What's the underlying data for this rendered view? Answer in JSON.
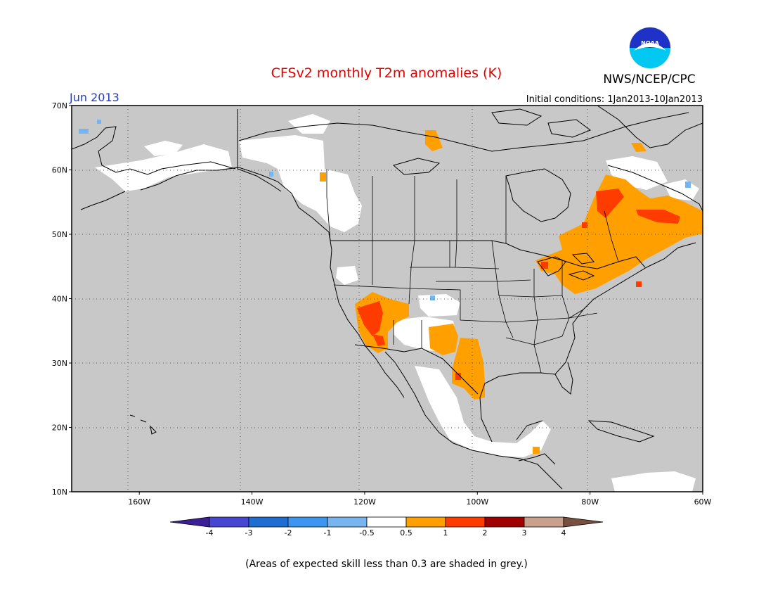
{
  "title": "CFSv2 monthly T2m anomalies (K)",
  "agency": "NWS/NCEP/CPC",
  "logo_text": "NOAA",
  "period": "Jun 2013",
  "initial_conditions": "Initial conditions: 1Jan2013-10Jan2013",
  "footer": "(Areas of expected skill less than 0.3 are shaded in grey.)",
  "map": {
    "lon_range": [
      -172,
      -60
    ],
    "lat_range": [
      10,
      70
    ],
    "lat_ticks": [
      {
        "value": 70,
        "label": "70N"
      },
      {
        "value": 60,
        "label": "60N"
      },
      {
        "value": 50,
        "label": "50N"
      },
      {
        "value": 40,
        "label": "40N"
      },
      {
        "value": 30,
        "label": "30N"
      },
      {
        "value": 20,
        "label": "20N"
      },
      {
        "value": 10,
        "label": "10N"
      }
    ],
    "lon_ticks": [
      {
        "value": -160,
        "label": "160W"
      },
      {
        "value": -140,
        "label": "140W"
      },
      {
        "value": -120,
        "label": "120W"
      },
      {
        "value": -100,
        "label": "100W"
      },
      {
        "value": -80,
        "label": "80W"
      },
      {
        "value": -60,
        "label": "60W"
      }
    ],
    "colors": {
      "no_skill": "#c8c8c8",
      "near_normal": "#ffffff",
      "warm_0_5_1": "#ffa000",
      "warm_1_2": "#ff3c00",
      "warm_2_3": "#a00000",
      "cold_1_0_5": "#78b4f0",
      "outline": "#000000"
    }
  },
  "legend": {
    "bins": [
      {
        "color": "#3c1e96",
        "kind": "left-arrow"
      },
      {
        "color": "#4646d2"
      },
      {
        "color": "#1e6ed2"
      },
      {
        "color": "#3c96f0"
      },
      {
        "color": "#78b4f0"
      },
      {
        "color": "#ffffff"
      },
      {
        "color": "#ffa000"
      },
      {
        "color": "#ff3c00"
      },
      {
        "color": "#a00000"
      },
      {
        "color": "#c8a08c"
      },
      {
        "color": "#785040",
        "kind": "right-arrow"
      }
    ],
    "labels": [
      "-4",
      "-3",
      "-2",
      "-1",
      "-0.5",
      "0.5",
      "1",
      "2",
      "3",
      "4"
    ]
  }
}
